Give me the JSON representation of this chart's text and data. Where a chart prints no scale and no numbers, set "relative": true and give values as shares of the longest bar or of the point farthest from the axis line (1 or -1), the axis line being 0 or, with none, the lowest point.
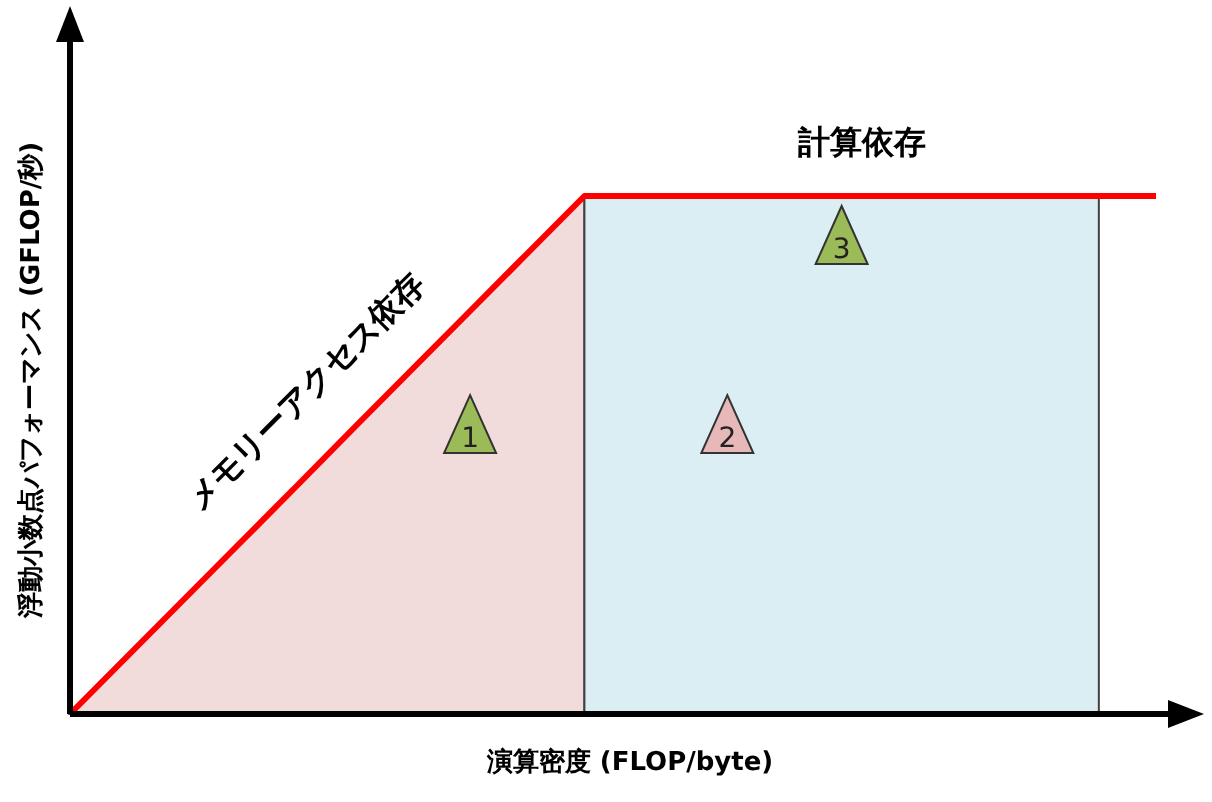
{
  "chart_data": {
    "type": "line",
    "relative": true,
    "xlabel": "演算密度 (FLOP/byte)",
    "ylabel": "浮動小数点パフォーマンス (GFLOP/秒)",
    "categories": [
      null,
      null,
      null,
      null,
      null,
      null,
      null,
      null,
      null,
      null,
      null,
      null,
      null,
      null,
      null,
      null,
      null,
      null,
      null,
      null
    ],
    "series": [
      {
        "color": "#ff0000",
        "values": [
          0,
          0.111,
          0.222,
          0.333,
          0.444,
          0.556,
          0.667,
          0.778,
          0.889,
          1,
          1,
          1,
          1,
          1,
          1,
          1,
          1,
          1,
          1,
          1
        ]
      },
      {
        "type": "area",
        "color": "#f2dcdb",
        "values": [
          0,
          0.111,
          0.222,
          0.333,
          0.444,
          0.556,
          0.667,
          0.778,
          0.889,
          1,
          null,
          null,
          null,
          null,
          null,
          null,
          null,
          null,
          null,
          null
        ]
      },
      {
        "type": "area",
        "color": "#daeef3",
        "values": [
          null,
          null,
          null,
          null,
          null,
          null,
          null,
          null,
          null,
          1,
          1,
          1,
          1,
          1,
          1,
          1,
          1,
          1,
          1,
          null
        ]
      }
    ],
    "annotations": [
      "メモリーアクセス依存",
      "計算依存",
      "1",
      "2",
      "3"
    ]
  }
}
